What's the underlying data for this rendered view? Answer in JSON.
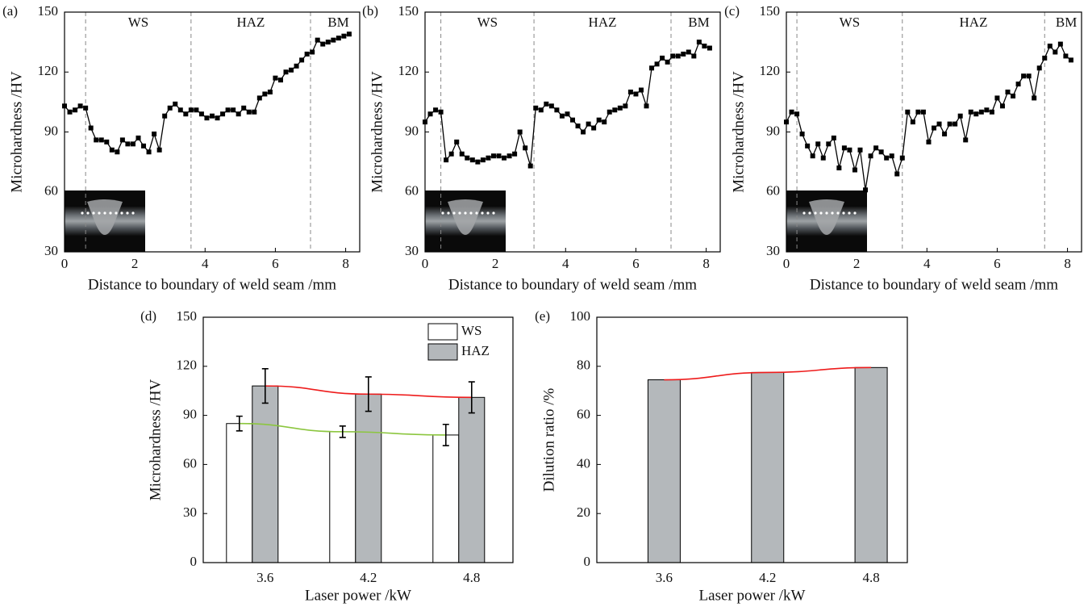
{
  "chart_data": [
    {
      "type": "line",
      "label": "(a)",
      "x_label": "Distance to boundary of weld seam /mm",
      "y_label": "Microhardness /HV",
      "x": [
        0,
        0.15,
        0.3,
        0.45,
        0.6,
        0.75,
        0.9,
        1.05,
        1.2,
        1.35,
        1.5,
        1.65,
        1.8,
        1.95,
        2.1,
        2.25,
        2.4,
        2.55,
        2.7,
        2.85,
        3,
        3.15,
        3.3,
        3.45,
        3.6,
        3.75,
        3.9,
        4.05,
        4.2,
        4.35,
        4.5,
        4.65,
        4.8,
        4.95,
        5.1,
        5.25,
        5.4,
        5.55,
        5.7,
        5.85,
        6,
        6.15,
        6.3,
        6.45,
        6.6,
        6.75,
        6.9,
        7.05,
        7.2,
        7.35,
        7.5,
        7.65,
        7.8,
        7.95,
        8.1
      ],
      "values": [
        103,
        100,
        101,
        103,
        102,
        92,
        86,
        86,
        85,
        81,
        80,
        86,
        84,
        84,
        87,
        83,
        80,
        89,
        81,
        98,
        102,
        104,
        101,
        99,
        101,
        101,
        99,
        97,
        98,
        97,
        99,
        101,
        101,
        99,
        102,
        100,
        100,
        107,
        109,
        110,
        117,
        116,
        120,
        121,
        123,
        126,
        129,
        130,
        136,
        134,
        135,
        136,
        137,
        138,
        139
      ],
      "color": "#000000",
      "regions": [
        "WS",
        "HAZ",
        "BM"
      ],
      "boundaries": [
        0.6,
        3.6,
        7.0
      ],
      "xlim": [
        0,
        8.4
      ],
      "ylim": [
        30,
        150
      ],
      "xticks": [
        0,
        2,
        4,
        6,
        8
      ],
      "yticks": [
        30,
        60,
        90,
        120,
        150
      ]
    },
    {
      "type": "line",
      "label": "(b)",
      "x_label": "Distance to boundary of weld seam /mm",
      "y_label": "Microhardness /HV",
      "x": [
        0,
        0.15,
        0.3,
        0.45,
        0.6,
        0.75,
        0.9,
        1.05,
        1.2,
        1.35,
        1.5,
        1.65,
        1.8,
        1.95,
        2.1,
        2.25,
        2.4,
        2.55,
        2.7,
        2.85,
        3,
        3.15,
        3.3,
        3.45,
        3.6,
        3.75,
        3.9,
        4.05,
        4.2,
        4.35,
        4.5,
        4.65,
        4.8,
        4.95,
        5.1,
        5.25,
        5.4,
        5.55,
        5.7,
        5.85,
        6,
        6.15,
        6.3,
        6.45,
        6.6,
        6.75,
        6.9,
        7.05,
        7.2,
        7.35,
        7.5,
        7.65,
        7.8,
        7.95,
        8.1
      ],
      "values": [
        95,
        99,
        101,
        100,
        76,
        79,
        85,
        79,
        77,
        76,
        75,
        76,
        77,
        78,
        78,
        77,
        78,
        79,
        90,
        82,
        73,
        102,
        101,
        104,
        103,
        101,
        98,
        99,
        96,
        93,
        90,
        94,
        92,
        96,
        95,
        100,
        101,
        102,
        103,
        110,
        109,
        111,
        103,
        122,
        124,
        127,
        125,
        128,
        128,
        129,
        130,
        128,
        135,
        133,
        132
      ],
      "color": "#000000",
      "regions": [
        "WS",
        "HAZ",
        "BM"
      ],
      "boundaries": [
        0.45,
        3.1,
        7.0
      ],
      "xlim": [
        0,
        8.4
      ],
      "ylim": [
        30,
        150
      ],
      "xticks": [
        0,
        2,
        4,
        6,
        8
      ],
      "yticks": [
        30,
        60,
        90,
        120,
        150
      ]
    },
    {
      "type": "line",
      "label": "(c)",
      "x_label": "Distance to boundary of weld seam /mm",
      "y_label": "Microhardness /HV",
      "x": [
        0,
        0.15,
        0.3,
        0.45,
        0.6,
        0.75,
        0.9,
        1.05,
        1.2,
        1.35,
        1.5,
        1.65,
        1.8,
        1.95,
        2.1,
        2.25,
        2.4,
        2.55,
        2.7,
        2.85,
        3,
        3.15,
        3.3,
        3.45,
        3.6,
        3.75,
        3.9,
        4.05,
        4.2,
        4.35,
        4.5,
        4.65,
        4.8,
        4.95,
        5.1,
        5.25,
        5.4,
        5.55,
        5.7,
        5.85,
        6,
        6.15,
        6.3,
        6.45,
        6.6,
        6.75,
        6.9,
        7.05,
        7.2,
        7.35,
        7.5,
        7.65,
        7.8,
        7.95,
        8.1
      ],
      "values": [
        95,
        100,
        99,
        89,
        83,
        78,
        84,
        77,
        84,
        87,
        72,
        82,
        81,
        71,
        81,
        61,
        78,
        82,
        80,
        77,
        78,
        69,
        77,
        100,
        95,
        100,
        100,
        85,
        92,
        94,
        89,
        94,
        94,
        98,
        86,
        100,
        99,
        100,
        101,
        100,
        107,
        103,
        110,
        108,
        114,
        118,
        118,
        107,
        122,
        127,
        133,
        130,
        134,
        128,
        126
      ],
      "color": "#000000",
      "regions": [
        "WS",
        "HAZ",
        "BM"
      ],
      "boundaries": [
        0.3,
        3.3,
        7.35
      ],
      "xlim": [
        0,
        8.4
      ],
      "ylim": [
        30,
        150
      ],
      "xticks": [
        0,
        2,
        4,
        6,
        8
      ],
      "yticks": [
        30,
        60,
        90,
        120,
        150
      ]
    },
    {
      "type": "bar",
      "label": "(d)",
      "x_label": "Laser power /kW",
      "y_label": "Microhardness /HV",
      "categories": [
        "3.6",
        "4.2",
        "4.8"
      ],
      "series": [
        {
          "name": "WS",
          "color": "#ffffff",
          "trend_color": "#8cc63f",
          "values": [
            85,
            80,
            78
          ],
          "errors": [
            4.5,
            3.5,
            6.5
          ]
        },
        {
          "name": "HAZ",
          "color": "#b4b8bb",
          "trend_color": "#ee1c1c",
          "values": [
            108,
            103,
            101
          ],
          "errors": [
            10.5,
            10.5,
            9.5
          ]
        }
      ],
      "legend": "upper right",
      "ylim": [
        0,
        150
      ],
      "yticks": [
        0,
        30,
        60,
        90,
        120,
        150
      ]
    },
    {
      "type": "bar",
      "label": "(e)",
      "x_label": "Laser power /kW",
      "y_label": "Dilution ratio /%",
      "categories": [
        "3.6",
        "4.2",
        "4.8"
      ],
      "series": [
        {
          "color": "#b4b8bb",
          "trend_color": "#ee1c1c",
          "values": [
            74.5,
            77.5,
            79.5
          ]
        }
      ],
      "ylim": [
        0,
        100
      ],
      "yticks": [
        0,
        20,
        40,
        60,
        80,
        100
      ]
    }
  ]
}
